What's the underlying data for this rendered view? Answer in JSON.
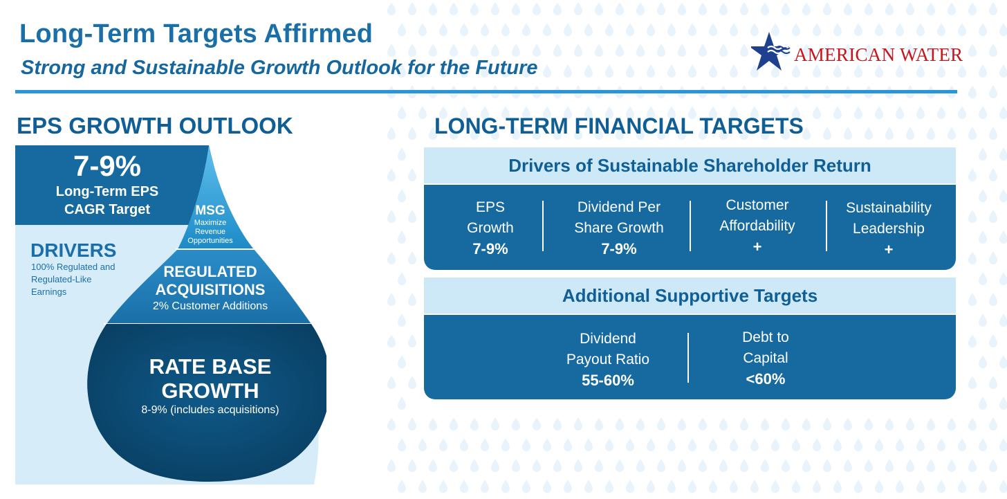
{
  "header": {
    "title": "Long-Term Targets Affirmed",
    "subtitle": "Strong and Sustainable Growth Outlook for the Future",
    "logo_text": "AMERICAN WATER"
  },
  "colors": {
    "primary": "#1a6fa8",
    "rule": "#2a96d6",
    "band": "#cde9f7",
    "panel": "#166a9f",
    "dark_drop": "#0b4a73",
    "logo_red": "#c4161c",
    "logo_blue": "#1f3f8f"
  },
  "eps": {
    "heading": "EPS GROWTH OUTLOOK",
    "target_value": "7-9%",
    "target_line1": "Long-Term EPS",
    "target_line2": "CAGR Target",
    "msg_title": "MSG",
    "msg_line1": "Maximize",
    "msg_line2": "Revenue",
    "msg_line3": "Opportunities",
    "drivers_title": "DRIVERS",
    "drivers_line1": "100% Regulated and",
    "drivers_line2": "Regulated-Like",
    "drivers_line3": "Earnings",
    "acq_line1": "REGULATED",
    "acq_line2": "ACQUISITIONS",
    "acq_sub": "2% Customer Additions",
    "rb_line1": "RATE BASE",
    "rb_line2": "GROWTH",
    "rb_sub": "8-9% (includes acquisitions)"
  },
  "financial": {
    "heading": "LONG-TERM FINANCIAL TARGETS",
    "drivers_band": "Drivers of Sustainable Shareholder Return",
    "drivers": [
      {
        "line1": "EPS",
        "line2": "Growth",
        "value": "7-9%"
      },
      {
        "line1": "Dividend Per",
        "line2": "Share Growth",
        "value": "7-9%"
      },
      {
        "line1": "Customer",
        "line2": "Affordability",
        "value": "+"
      },
      {
        "line1": "Sustainability",
        "line2": "Leadership",
        "value": "+"
      }
    ],
    "supportive_band": "Additional Supportive Targets",
    "supportive": [
      {
        "line1": "Dividend",
        "line2": "Payout Ratio",
        "value": "55-60%"
      },
      {
        "line1": "Debt to",
        "line2": "Capital",
        "value": "<60%"
      }
    ]
  }
}
